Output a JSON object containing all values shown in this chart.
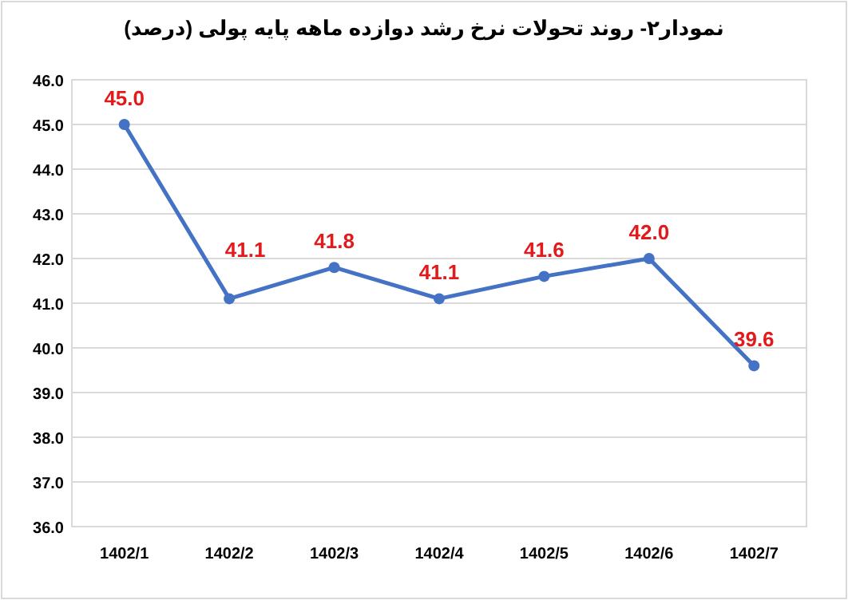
{
  "chart_data": {
    "type": "line",
    "title": "نمودار۲- روند تحولات نرخ رشد دوازده ماهه پایه پولی (درصد)",
    "categories": [
      "1402/1",
      "1402/2",
      "1402/3",
      "1402/4",
      "1402/5",
      "1402/6",
      "1402/7"
    ],
    "series": [
      {
        "color": "#4472c4",
        "values": [
          45.0,
          41.1,
          41.8,
          41.1,
          41.6,
          42.0,
          39.6
        ],
        "value_labels": [
          "45.0",
          "41.1",
          "41.8",
          "41.1",
          "41.6",
          "42.0",
          "39.6"
        ]
      }
    ],
    "ylim": [
      36,
      46
    ],
    "yticks": [
      {
        "value": 36,
        "label": "36.0"
      },
      {
        "value": 37,
        "label": "37.0"
      },
      {
        "value": 38,
        "label": "38.0"
      },
      {
        "value": 39,
        "label": "39.0"
      },
      {
        "value": 40,
        "label": "40.0"
      },
      {
        "value": 41,
        "label": "41.0"
      },
      {
        "value": 42,
        "label": "42.0"
      },
      {
        "value": 43,
        "label": "43.0"
      },
      {
        "value": 44,
        "label": "44.0"
      },
      {
        "value": 45,
        "label": "45.0"
      },
      {
        "value": 46,
        "label": "46.0"
      }
    ],
    "grid": "y",
    "marker": "circle",
    "line_style": "solid"
  }
}
